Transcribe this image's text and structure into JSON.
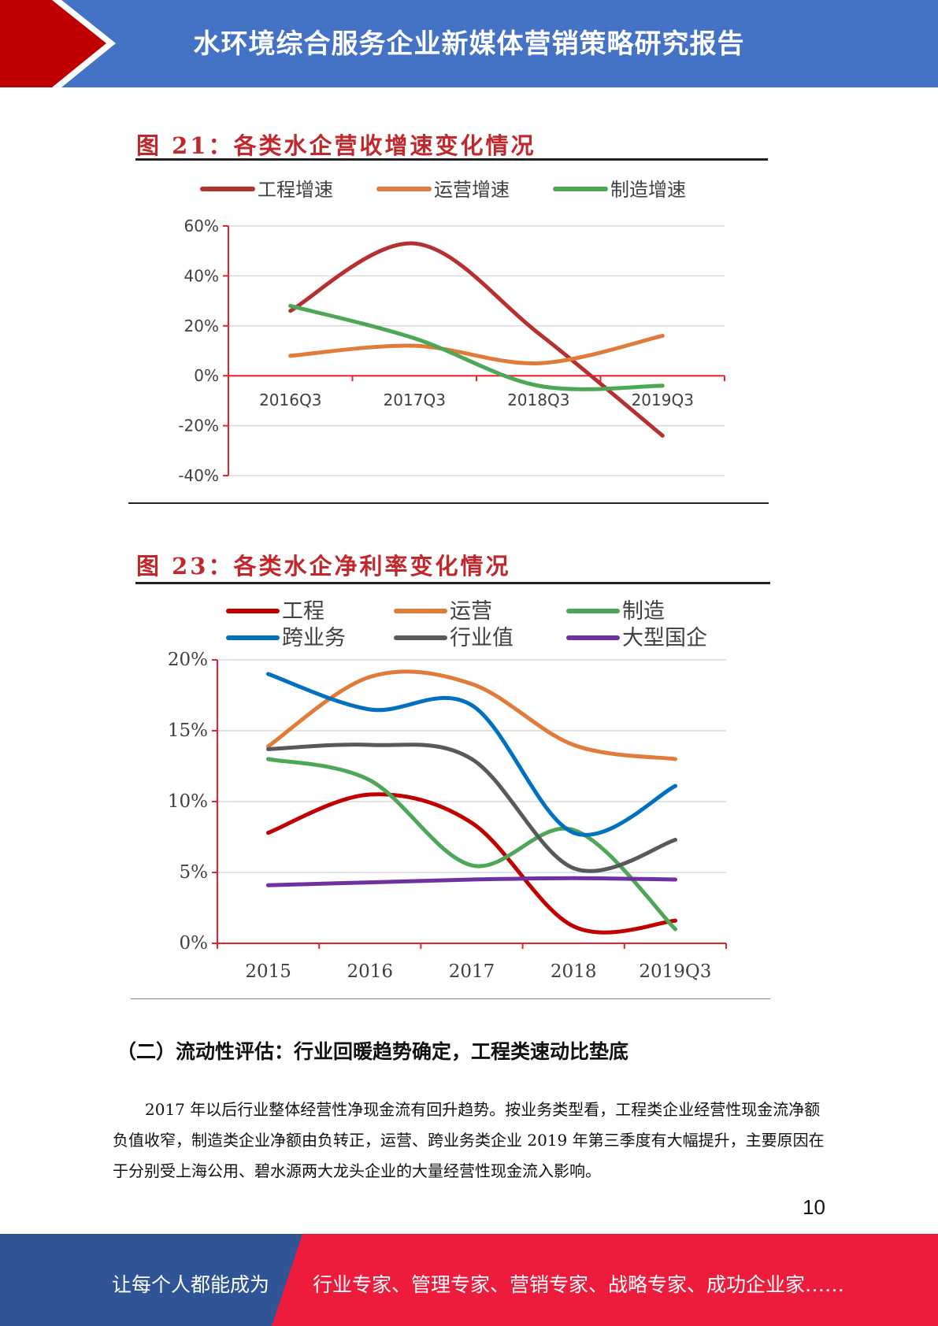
{
  "header": {
    "title": "水环境综合服务企业新媒体营销策略研究报告"
  },
  "colors": {
    "header_blue": "#4472c4",
    "accent_red": "#c00000",
    "footer_blue": "#2f5597",
    "footer_red": "#ee1c3c"
  },
  "figures": [
    {
      "title": "图 21：各类水企营收增速变化情况"
    },
    {
      "title": "图 23：各类水企净利率变化情况"
    }
  ],
  "chart_data": [
    {
      "type": "line",
      "title": "图 21：各类水企营收增速变化情况",
      "categories": [
        "2016Q3",
        "2017Q3",
        "2018Q3",
        "2019Q3"
      ],
      "ylim": [
        -40,
        60
      ],
      "yticks": [
        "60%",
        "40%",
        "20%",
        "0%",
        "-20%",
        "-40%"
      ],
      "ytick_values": [
        60,
        40,
        20,
        0,
        -20,
        -40
      ],
      "grid": true,
      "legend": "top",
      "series": [
        {
          "name": "工程增速",
          "color": "#b5302f",
          "values": [
            26,
            53,
            17,
            -24
          ]
        },
        {
          "name": "运营增速",
          "color": "#e07b39",
          "values": [
            8,
            12,
            5,
            16
          ]
        },
        {
          "name": "制造增速",
          "color": "#4ea657",
          "values": [
            28,
            15,
            -4,
            -4
          ]
        }
      ]
    },
    {
      "type": "line",
      "title": "图 23：各类水企净利率变化情况",
      "categories": [
        "2015",
        "2016",
        "2017",
        "2018",
        "2019Q3"
      ],
      "ylim": [
        0,
        20
      ],
      "yticks": [
        "20%",
        "15%",
        "10%",
        "5%",
        "0%"
      ],
      "ytick_values": [
        20,
        15,
        10,
        5,
        0
      ],
      "grid": true,
      "legend": "top",
      "series": [
        {
          "name": "工程",
          "color": "#c00000",
          "values": [
            7.8,
            10.5,
            8.5,
            1.2,
            1.6
          ]
        },
        {
          "name": "运营",
          "color": "#e07b39",
          "values": [
            13.9,
            18.8,
            18.3,
            14.0,
            13.0
          ]
        },
        {
          "name": "制造",
          "color": "#4ea657",
          "values": [
            13.0,
            11.5,
            5.5,
            8.0,
            1.0
          ]
        },
        {
          "name": "跨业务",
          "color": "#0070c0",
          "values": [
            19.0,
            16.5,
            16.8,
            7.8,
            11.1
          ]
        },
        {
          "name": "行业值",
          "color": "#595959",
          "values": [
            13.7,
            14.0,
            13.0,
            5.3,
            7.3
          ]
        },
        {
          "name": "大型国企",
          "color": "#7030a0",
          "values": [
            4.1,
            4.3,
            4.5,
            4.6,
            4.5
          ]
        }
      ]
    }
  ],
  "section": {
    "heading": "（二）流动性评估：行业回暖趋势确定，工程类速动比垫底",
    "paragraph": "2017 年以后行业整体经营性净现金流有回升趋势。按业务类型看，工程类企业经营性现金流净额负值收窄，制造类企业净额由负转正，运营、跨业务类企业 2019 年第三季度有大幅提升，主要原因在于分别受上海公用、碧水源两大龙头企业的大量经营性现金流入影响。"
  },
  "page_number": "10",
  "footer": {
    "left": "让每个人都能成为",
    "right": "行业专家、管理专家、营销专家、战略专家、成功企业家……"
  }
}
